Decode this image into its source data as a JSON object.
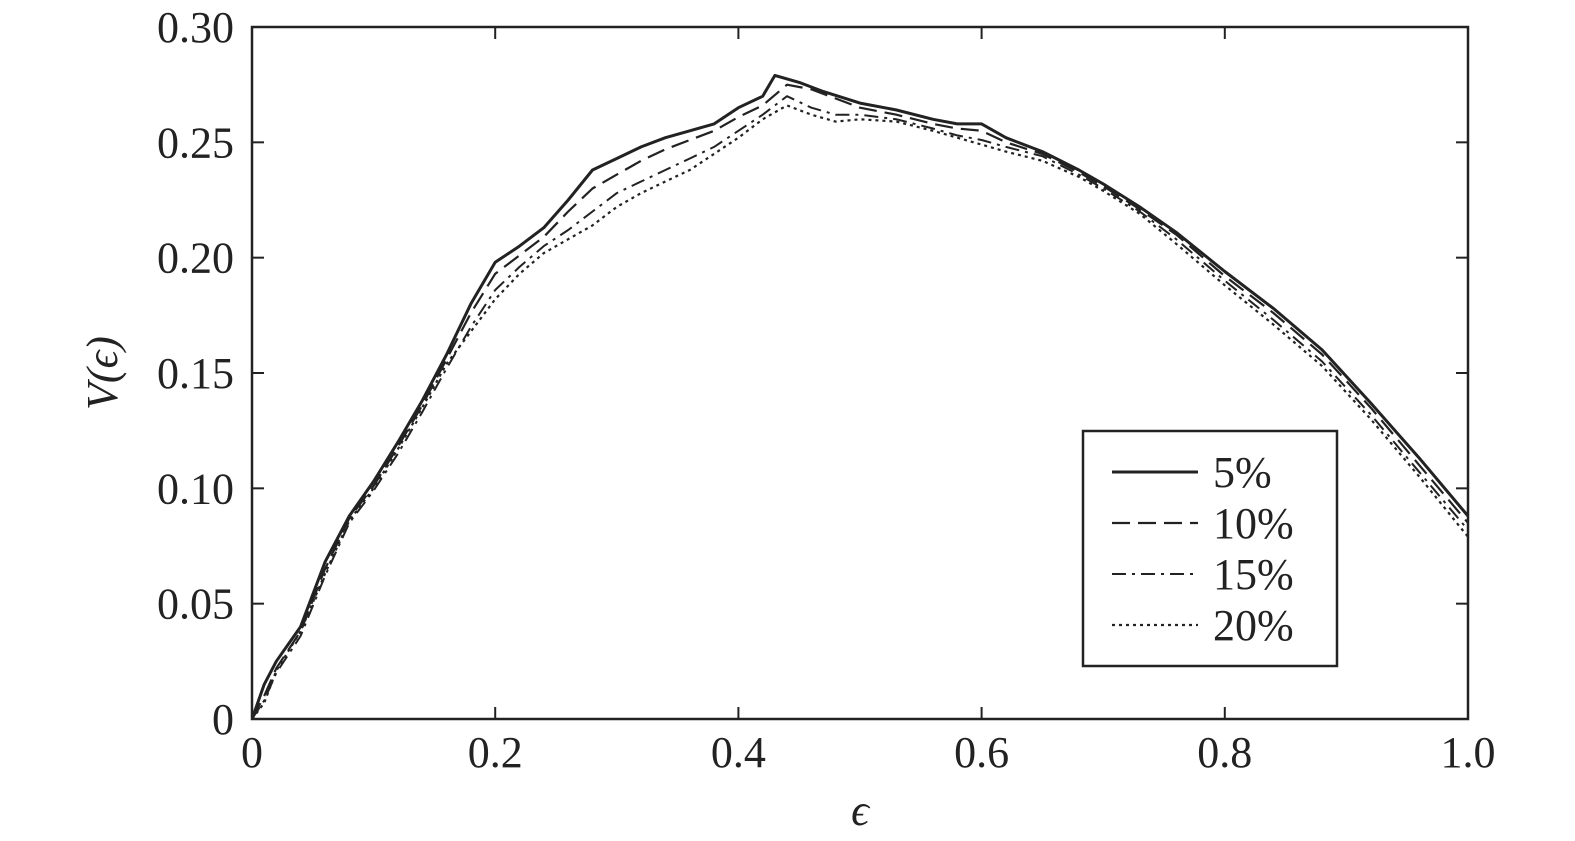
{
  "chart_data": {
    "type": "line",
    "title": "",
    "xlabel": "ϵ",
    "ylabel": "V(ϵ)",
    "xlim": [
      0,
      1.0
    ],
    "ylim": [
      0,
      0.3
    ],
    "xticks": [
      0,
      0.2,
      0.4,
      0.6,
      0.8,
      1.0
    ],
    "xtick_labels": [
      "0",
      "0.2",
      "0.4",
      "0.6",
      "0.8",
      "1.0"
    ],
    "yticks": [
      0,
      0.05,
      0.1,
      0.15,
      0.2,
      0.25,
      0.3
    ],
    "ytick_labels": [
      "0",
      "0.05",
      "0.10",
      "0.15",
      "0.20",
      "0.25",
      "0.30"
    ],
    "grid": false,
    "legend_position": "bottom-right",
    "series": [
      {
        "name": "5%",
        "line_style": "solid",
        "x": [
          0.0,
          0.01,
          0.02,
          0.04,
          0.06,
          0.08,
          0.1,
          0.12,
          0.14,
          0.16,
          0.18,
          0.2,
          0.22,
          0.24,
          0.26,
          0.28,
          0.3,
          0.32,
          0.34,
          0.36,
          0.38,
          0.4,
          0.42,
          0.43,
          0.45,
          0.47,
          0.5,
          0.53,
          0.56,
          0.58,
          0.6,
          0.62,
          0.65,
          0.68,
          0.7,
          0.73,
          0.76,
          0.8,
          0.84,
          0.88,
          0.92,
          0.96,
          1.0
        ],
        "y": [
          0.0,
          0.015,
          0.025,
          0.04,
          0.068,
          0.088,
          0.103,
          0.12,
          0.138,
          0.158,
          0.18,
          0.198,
          0.205,
          0.213,
          0.225,
          0.238,
          0.243,
          0.248,
          0.252,
          0.255,
          0.258,
          0.265,
          0.27,
          0.279,
          0.276,
          0.272,
          0.267,
          0.264,
          0.26,
          0.258,
          0.258,
          0.252,
          0.246,
          0.238,
          0.232,
          0.222,
          0.211,
          0.194,
          0.178,
          0.16,
          0.137,
          0.113,
          0.088
        ]
      },
      {
        "name": "10%",
        "line_style": "dashed",
        "x": [
          0.0,
          0.01,
          0.02,
          0.04,
          0.06,
          0.08,
          0.1,
          0.12,
          0.14,
          0.16,
          0.18,
          0.2,
          0.22,
          0.24,
          0.26,
          0.28,
          0.3,
          0.32,
          0.34,
          0.36,
          0.38,
          0.4,
          0.42,
          0.44,
          0.46,
          0.48,
          0.5,
          0.53,
          0.56,
          0.58,
          0.6,
          0.62,
          0.65,
          0.68,
          0.7,
          0.73,
          0.76,
          0.8,
          0.84,
          0.88,
          0.92,
          0.96,
          1.0
        ],
        "y": [
          0.0,
          0.01,
          0.022,
          0.038,
          0.065,
          0.087,
          0.101,
          0.118,
          0.136,
          0.156,
          0.176,
          0.193,
          0.201,
          0.209,
          0.22,
          0.23,
          0.236,
          0.242,
          0.247,
          0.251,
          0.255,
          0.261,
          0.266,
          0.275,
          0.273,
          0.269,
          0.265,
          0.262,
          0.258,
          0.256,
          0.255,
          0.25,
          0.245,
          0.237,
          0.231,
          0.221,
          0.21,
          0.192,
          0.176,
          0.158,
          0.135,
          0.11,
          0.085
        ]
      },
      {
        "name": "15%",
        "line_style": "dashdot",
        "x": [
          0.0,
          0.01,
          0.02,
          0.04,
          0.06,
          0.08,
          0.1,
          0.12,
          0.14,
          0.16,
          0.18,
          0.2,
          0.22,
          0.24,
          0.26,
          0.28,
          0.3,
          0.32,
          0.34,
          0.36,
          0.38,
          0.4,
          0.42,
          0.44,
          0.46,
          0.48,
          0.5,
          0.53,
          0.56,
          0.58,
          0.6,
          0.62,
          0.65,
          0.68,
          0.7,
          0.73,
          0.76,
          0.8,
          0.84,
          0.88,
          0.92,
          0.96,
          1.0
        ],
        "y": [
          0.0,
          0.008,
          0.02,
          0.036,
          0.062,
          0.085,
          0.099,
          0.115,
          0.133,
          0.152,
          0.17,
          0.186,
          0.196,
          0.205,
          0.212,
          0.22,
          0.228,
          0.233,
          0.238,
          0.243,
          0.248,
          0.255,
          0.262,
          0.27,
          0.265,
          0.262,
          0.262,
          0.26,
          0.256,
          0.253,
          0.251,
          0.248,
          0.244,
          0.236,
          0.23,
          0.22,
          0.208,
          0.19,
          0.173,
          0.155,
          0.132,
          0.107,
          0.082
        ]
      },
      {
        "name": "20%",
        "line_style": "dotted",
        "x": [
          0.0,
          0.01,
          0.02,
          0.04,
          0.06,
          0.08,
          0.1,
          0.12,
          0.14,
          0.16,
          0.18,
          0.2,
          0.22,
          0.24,
          0.26,
          0.28,
          0.3,
          0.32,
          0.34,
          0.36,
          0.38,
          0.4,
          0.42,
          0.44,
          0.46,
          0.48,
          0.5,
          0.53,
          0.56,
          0.58,
          0.6,
          0.62,
          0.65,
          0.68,
          0.7,
          0.73,
          0.76,
          0.8,
          0.84,
          0.88,
          0.92,
          0.96,
          1.0
        ],
        "y": [
          0.0,
          0.007,
          0.021,
          0.038,
          0.063,
          0.086,
          0.1,
          0.117,
          0.135,
          0.154,
          0.168,
          0.182,
          0.193,
          0.202,
          0.208,
          0.214,
          0.222,
          0.228,
          0.233,
          0.238,
          0.245,
          0.252,
          0.26,
          0.266,
          0.262,
          0.259,
          0.26,
          0.259,
          0.255,
          0.252,
          0.249,
          0.246,
          0.242,
          0.235,
          0.229,
          0.219,
          0.206,
          0.188,
          0.171,
          0.153,
          0.13,
          0.105,
          0.079
        ]
      }
    ]
  }
}
